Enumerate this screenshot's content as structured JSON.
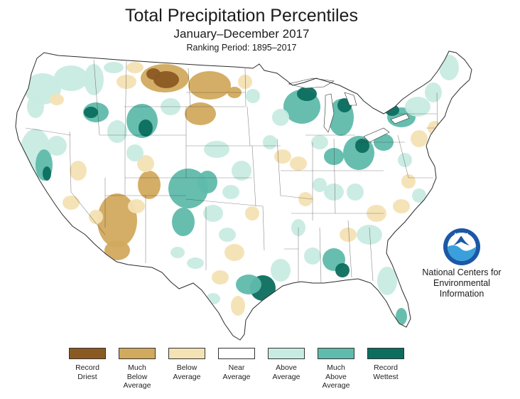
{
  "header": {
    "title": "Total Precipitation Percentiles",
    "subtitle": "January–December 2017",
    "ranking": "Ranking Period: 1895–2017"
  },
  "org": {
    "logo_text": "NOAA",
    "lines": [
      "National Centers for",
      "Environmental",
      "Information"
    ]
  },
  "legend": [
    {
      "lines": [
        "Record",
        "Driest"
      ],
      "color": "#8b5a23"
    },
    {
      "lines": [
        "Much",
        "Below",
        "Average"
      ],
      "color": "#d2aa5e"
    },
    {
      "lines": [
        "Below",
        "Average"
      ],
      "color": "#f4e1b4"
    },
    {
      "lines": [
        "Near",
        "Average"
      ],
      "color": "#ffffff"
    },
    {
      "lines": [
        "Above",
        "Average"
      ],
      "color": "#c8ebe1"
    },
    {
      "lines": [
        "Much",
        "Above",
        "Average"
      ],
      "color": "#5fbbab"
    },
    {
      "lines": [
        "Record",
        "Wettest"
      ],
      "color": "#0c6e5e"
    }
  ],
  "map": {
    "colors": {
      "near": "#ffffff",
      "above": "#c8ebe1",
      "much_above": "#5fbbab",
      "record_wet": "#0c6e5e",
      "below": "#f4e1b4",
      "much_below": "#d2aa5e",
      "record_dry": "#8b5a23",
      "border": "#2b2b2b"
    }
  }
}
